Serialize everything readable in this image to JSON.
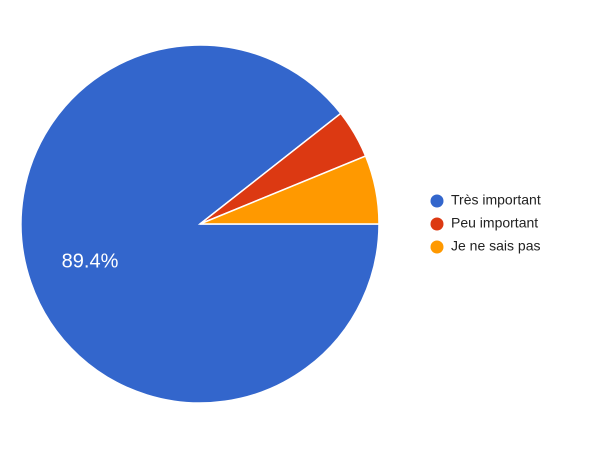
{
  "chart_data": {
    "type": "pie",
    "categories": [
      "Très important",
      "Peu important",
      "Je ne sais pas"
    ],
    "values": [
      89.4,
      4.4,
      6.2
    ],
    "value_labels": [
      "89.4%",
      null,
      null
    ],
    "colors": [
      "#3366cc",
      "#dc3912",
      "#ff9900"
    ],
    "legend": "right"
  }
}
